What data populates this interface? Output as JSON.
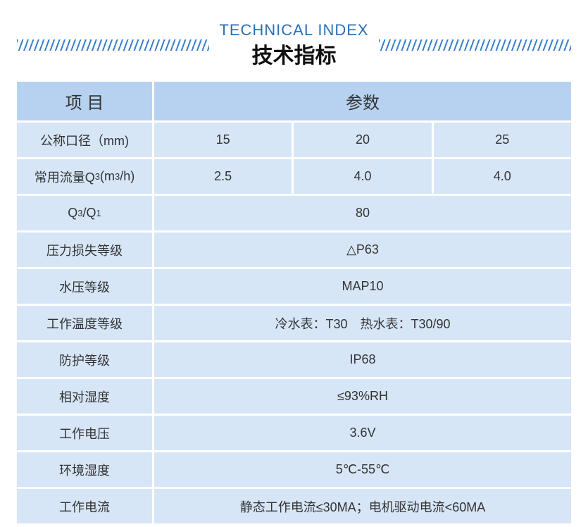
{
  "colors": {
    "accent": "#2b6fb3",
    "stripe": "#3a7fc9",
    "header_bg": "#b6d2f0",
    "label_bg": "#d7e6f7",
    "cell_bg": "#d7e6f7"
  },
  "title_en": "TECHNICAL INDEX",
  "title_zh": "技术指标",
  "header": {
    "item": "项 目",
    "param": "参数"
  },
  "rows": [
    {
      "label_html": "公称口径（mm)",
      "cells": [
        "15",
        "20",
        "25"
      ]
    },
    {
      "label_html": "常用流量Q<span class=\"sub\">3</span>(m<span class=\"sup\">3</span>/h)",
      "cells": [
        "2.5",
        "4.0",
        "4.0"
      ]
    },
    {
      "label_html": "Q<span class=\"sub\">3</span>/Q<span class=\"sub\">1</span>",
      "cells": [
        "80"
      ]
    },
    {
      "label_html": "压力损失等级",
      "cells": [
        "△P63"
      ]
    },
    {
      "label_html": "水压等级",
      "cells": [
        "MAP10"
      ]
    },
    {
      "label_html": "工作温度等级",
      "cells": [
        "冷水表：T30 热水表：T30/90"
      ]
    },
    {
      "label_html": "防护等级",
      "cells": [
        "IP68"
      ]
    },
    {
      "label_html": "相对湿度",
      "cells": [
        "≤93%RH"
      ]
    },
    {
      "label_html": "工作电压",
      "cells": [
        "3.6V"
      ]
    },
    {
      "label_html": "环境湿度",
      "cells": [
        "5℃-55℃"
      ]
    },
    {
      "label_html": "工作电流",
      "cells": [
        "静态工作电流≤30MA；电机驱动电流<60MA"
      ]
    }
  ]
}
